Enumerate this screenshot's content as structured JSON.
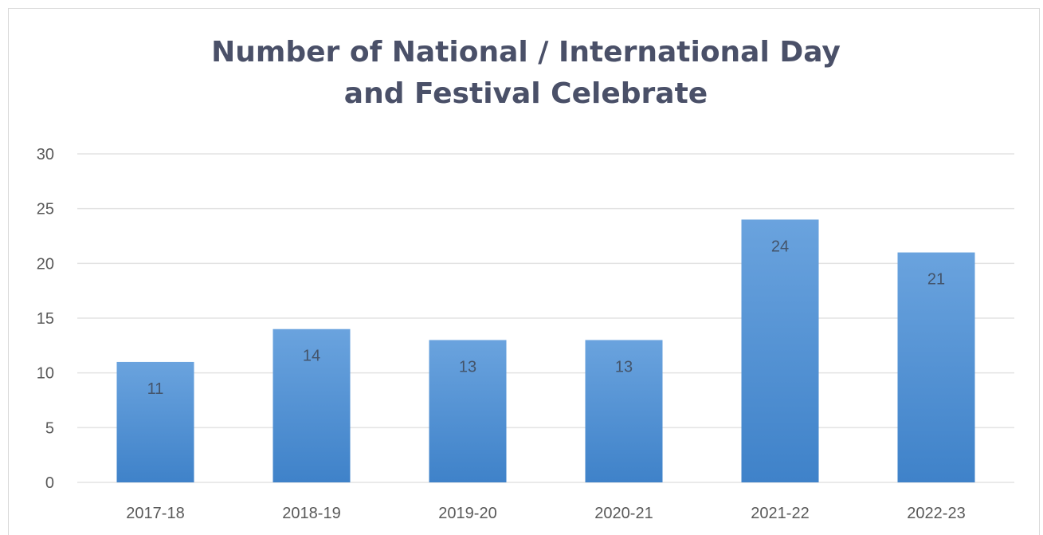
{
  "chart_data": {
    "type": "bar",
    "title": "Number of National / International Day and Festival Celebrate",
    "title_lines": [
      "Number of National / International Day",
      "and Festival Celebrate"
    ],
    "categories": [
      "2017-18",
      "2018-19",
      "2019-20",
      "2020-21",
      "2021-22",
      "2022-23"
    ],
    "values": [
      11,
      14,
      13,
      13,
      24,
      21
    ],
    "data_labels": [
      "11",
      "14",
      "13",
      "13",
      "24",
      "21"
    ],
    "y_ticks": [
      "0",
      "5",
      "10",
      "15",
      "20",
      "25",
      "30"
    ],
    "ylim": [
      0,
      30
    ],
    "xlabel": "",
    "ylabel": "",
    "grid": true,
    "legend": "none",
    "colors": {
      "bar_top": "#6aa3de",
      "bar_bottom": "#3f82c9",
      "grid": "#e3e3e3"
    }
  }
}
